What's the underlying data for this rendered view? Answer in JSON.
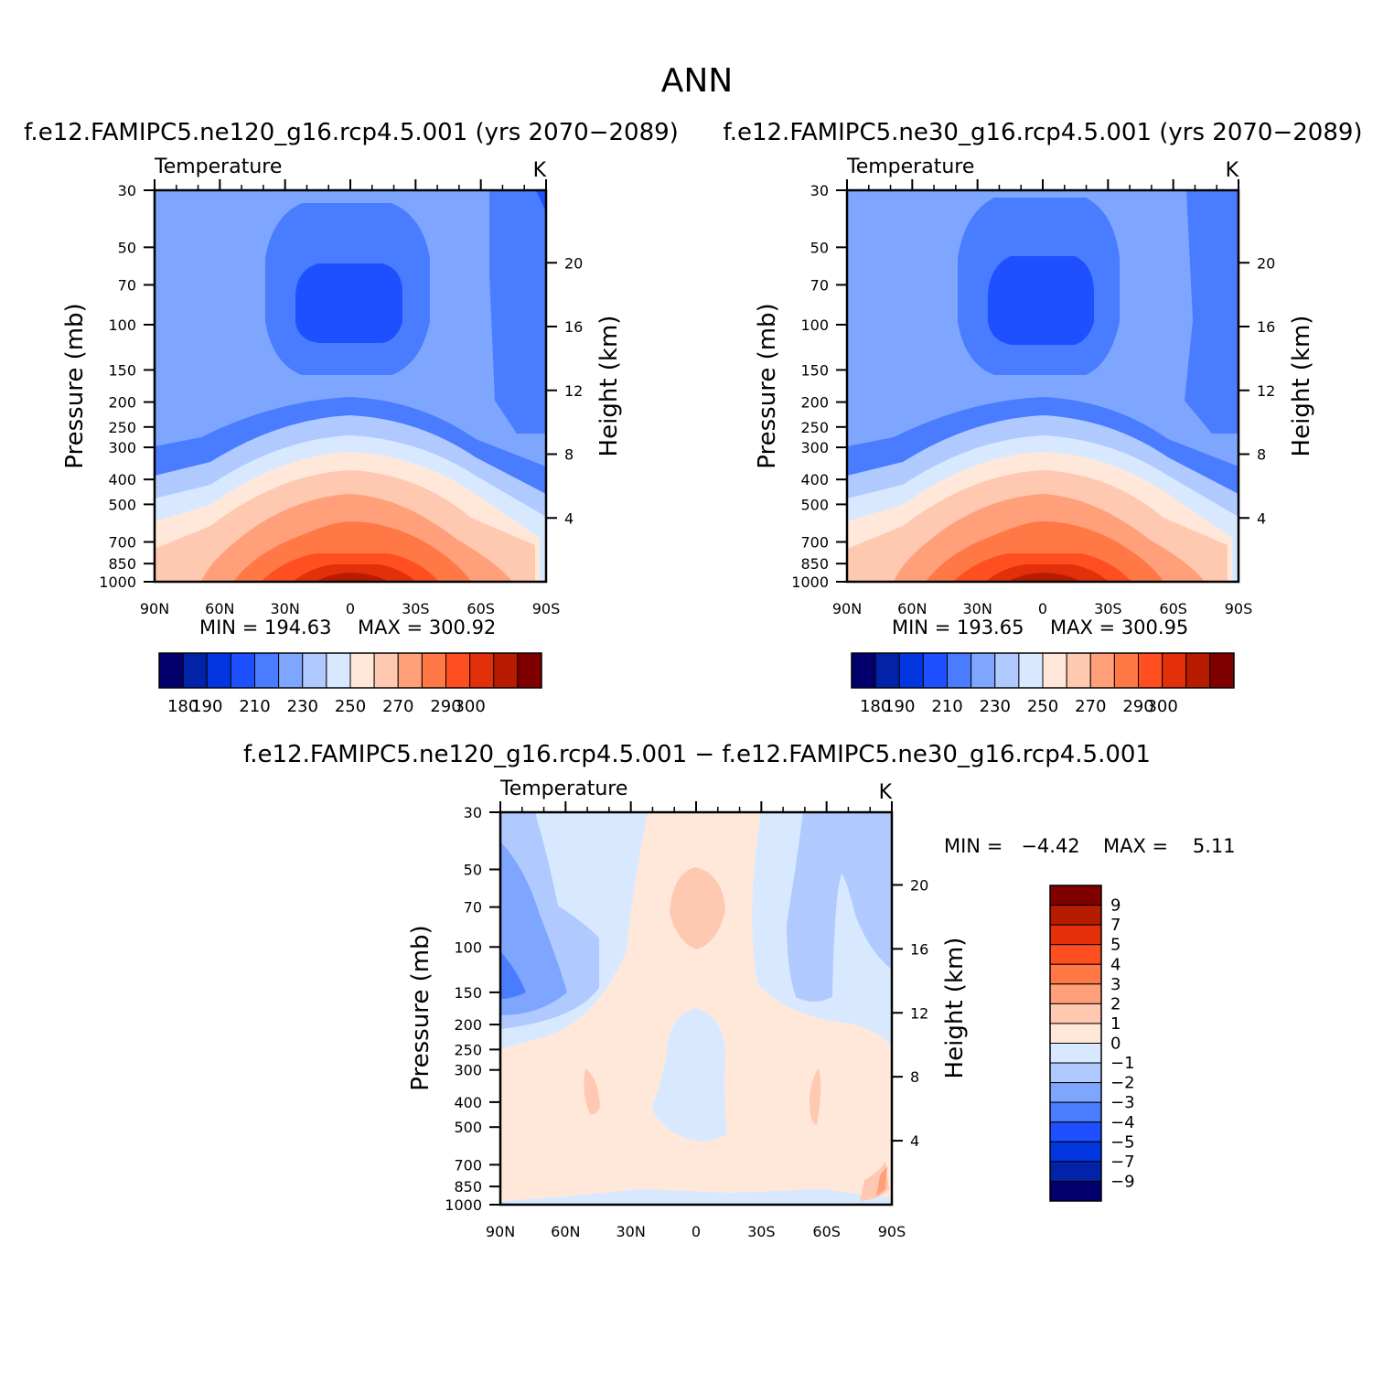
{
  "figure": {
    "title": "ANN"
  },
  "chart_data": [
    {
      "id": "panel_1",
      "type": "heatmap",
      "title": "f.e12.FAMIPC5.ne120_g16.rcp4.5.001 (yrs 2070−2089)",
      "variable": "Temperature",
      "units": "K",
      "xlabel": "",
      "ylabel": "Pressure (mb)",
      "ylabel_right": "Height (km)",
      "x_tick_labels": [
        "90N",
        "60N",
        "30N",
        "0",
        "30S",
        "60S",
        "90S"
      ],
      "x_ticks": [
        -90,
        -60,
        -30,
        0,
        30,
        60,
        90
      ],
      "xlim": [
        -90,
        90
      ],
      "pressure_ticks": [
        30,
        50,
        70,
        100,
        150,
        200,
        250,
        300,
        400,
        500,
        700,
        850,
        1000
      ],
      "ylim": [
        1000,
        30
      ],
      "height_ticks_km": [
        4,
        8,
        12,
        16,
        20
      ],
      "min_label": "MIN = 194.63",
      "max_label": "MAX = 300.92",
      "min": 194.63,
      "max": 300.92,
      "colorbar": {
        "orientation": "horizontal",
        "levels": [
          180,
          190,
          200,
          210,
          220,
          230,
          240,
          250,
          260,
          270,
          280,
          290,
          300
        ],
        "tick_labels": [
          "180",
          "190",
          "210",
          "230",
          "250",
          "270",
          "290",
          "300"
        ],
        "tick_values": [
          180,
          190,
          210,
          230,
          250,
          270,
          290,
          300
        ],
        "colors": [
          "#03006e",
          "#0222a8",
          "#0236e0",
          "#1e50ff",
          "#4a7cff",
          "#7ea6ff",
          "#b0caff",
          "#d8e9ff",
          "#ffe8da",
          "#ffc8b0",
          "#ffa07a",
          "#ff7846",
          "#ff4e20",
          "#e4300a",
          "#b81c00",
          "#800000"
        ]
      }
    },
    {
      "id": "panel_2",
      "type": "heatmap",
      "title": "f.e12.FAMIPC5.ne30_g16.rcp4.5.001 (yrs 2070−2089)",
      "variable": "Temperature",
      "units": "K",
      "xlabel": "",
      "ylabel": "Pressure (mb)",
      "ylabel_right": "Height (km)",
      "x_tick_labels": [
        "90N",
        "60N",
        "30N",
        "0",
        "30S",
        "60S",
        "90S"
      ],
      "x_ticks": [
        -90,
        -60,
        -30,
        0,
        30,
        60,
        90
      ],
      "xlim": [
        -90,
        90
      ],
      "pressure_ticks": [
        30,
        50,
        70,
        100,
        150,
        200,
        250,
        300,
        400,
        500,
        700,
        850,
        1000
      ],
      "ylim": [
        1000,
        30
      ],
      "height_ticks_km": [
        4,
        8,
        12,
        16,
        20
      ],
      "min_label": "MIN = 193.65",
      "max_label": "MAX = 300.95",
      "min": 193.65,
      "max": 300.95,
      "colorbar": {
        "orientation": "horizontal",
        "levels": [
          180,
          190,
          200,
          210,
          220,
          230,
          240,
          250,
          260,
          270,
          280,
          290,
          300
        ],
        "tick_labels": [
          "180",
          "190",
          "210",
          "230",
          "250",
          "270",
          "290",
          "300"
        ],
        "tick_values": [
          180,
          190,
          210,
          230,
          250,
          270,
          290,
          300
        ],
        "colors": [
          "#03006e",
          "#0222a8",
          "#0236e0",
          "#1e50ff",
          "#4a7cff",
          "#7ea6ff",
          "#b0caff",
          "#d8e9ff",
          "#ffe8da",
          "#ffc8b0",
          "#ffa07a",
          "#ff7846",
          "#ff4e20",
          "#e4300a",
          "#b81c00",
          "#800000"
        ]
      }
    },
    {
      "id": "panel_diff",
      "type": "heatmap",
      "title": "f.e12.FAMIPC5.ne120_g16.rcp4.5.001 − f.e12.FAMIPC5.ne30_g16.rcp4.5.001",
      "variable": "Temperature",
      "units": "K",
      "xlabel": "",
      "ylabel": "Pressure (mb)",
      "ylabel_right": "Height (km)",
      "x_tick_labels": [
        "90N",
        "60N",
        "30N",
        "0",
        "30S",
        "60S",
        "90S"
      ],
      "x_ticks": [
        -90,
        -60,
        -30,
        0,
        30,
        60,
        90
      ],
      "xlim": [
        -90,
        90
      ],
      "pressure_ticks": [
        30,
        50,
        70,
        100,
        150,
        200,
        250,
        300,
        400,
        500,
        700,
        850,
        1000
      ],
      "ylim": [
        1000,
        30
      ],
      "height_ticks_km": [
        4,
        8,
        12,
        16,
        20
      ],
      "min_label": "MIN =   −4.42",
      "max_label": "MAX =    5.11",
      "min": -4.42,
      "max": 5.11,
      "colorbar": {
        "orientation": "vertical",
        "levels": [
          -9,
          -7,
          -5,
          -4,
          -3,
          -2,
          -1,
          0,
          1,
          2,
          3,
          4,
          5,
          7,
          9
        ],
        "tick_labels": [
          "9",
          "7",
          "5",
          "4",
          "3",
          "2",
          "1",
          "0",
          "−1",
          "−2",
          "−3",
          "−4",
          "−5",
          "−7",
          "−9"
        ],
        "colors_top_to_bottom": [
          "#800000",
          "#b81c00",
          "#e4300a",
          "#ff4e20",
          "#ff7846",
          "#ffa07a",
          "#ffc8b0",
          "#ffe8da",
          "#d8e9ff",
          "#b0caff",
          "#7ea6ff",
          "#4a7cff",
          "#1e50ff",
          "#0236e0",
          "#0222a8",
          "#03006e"
        ]
      }
    }
  ]
}
